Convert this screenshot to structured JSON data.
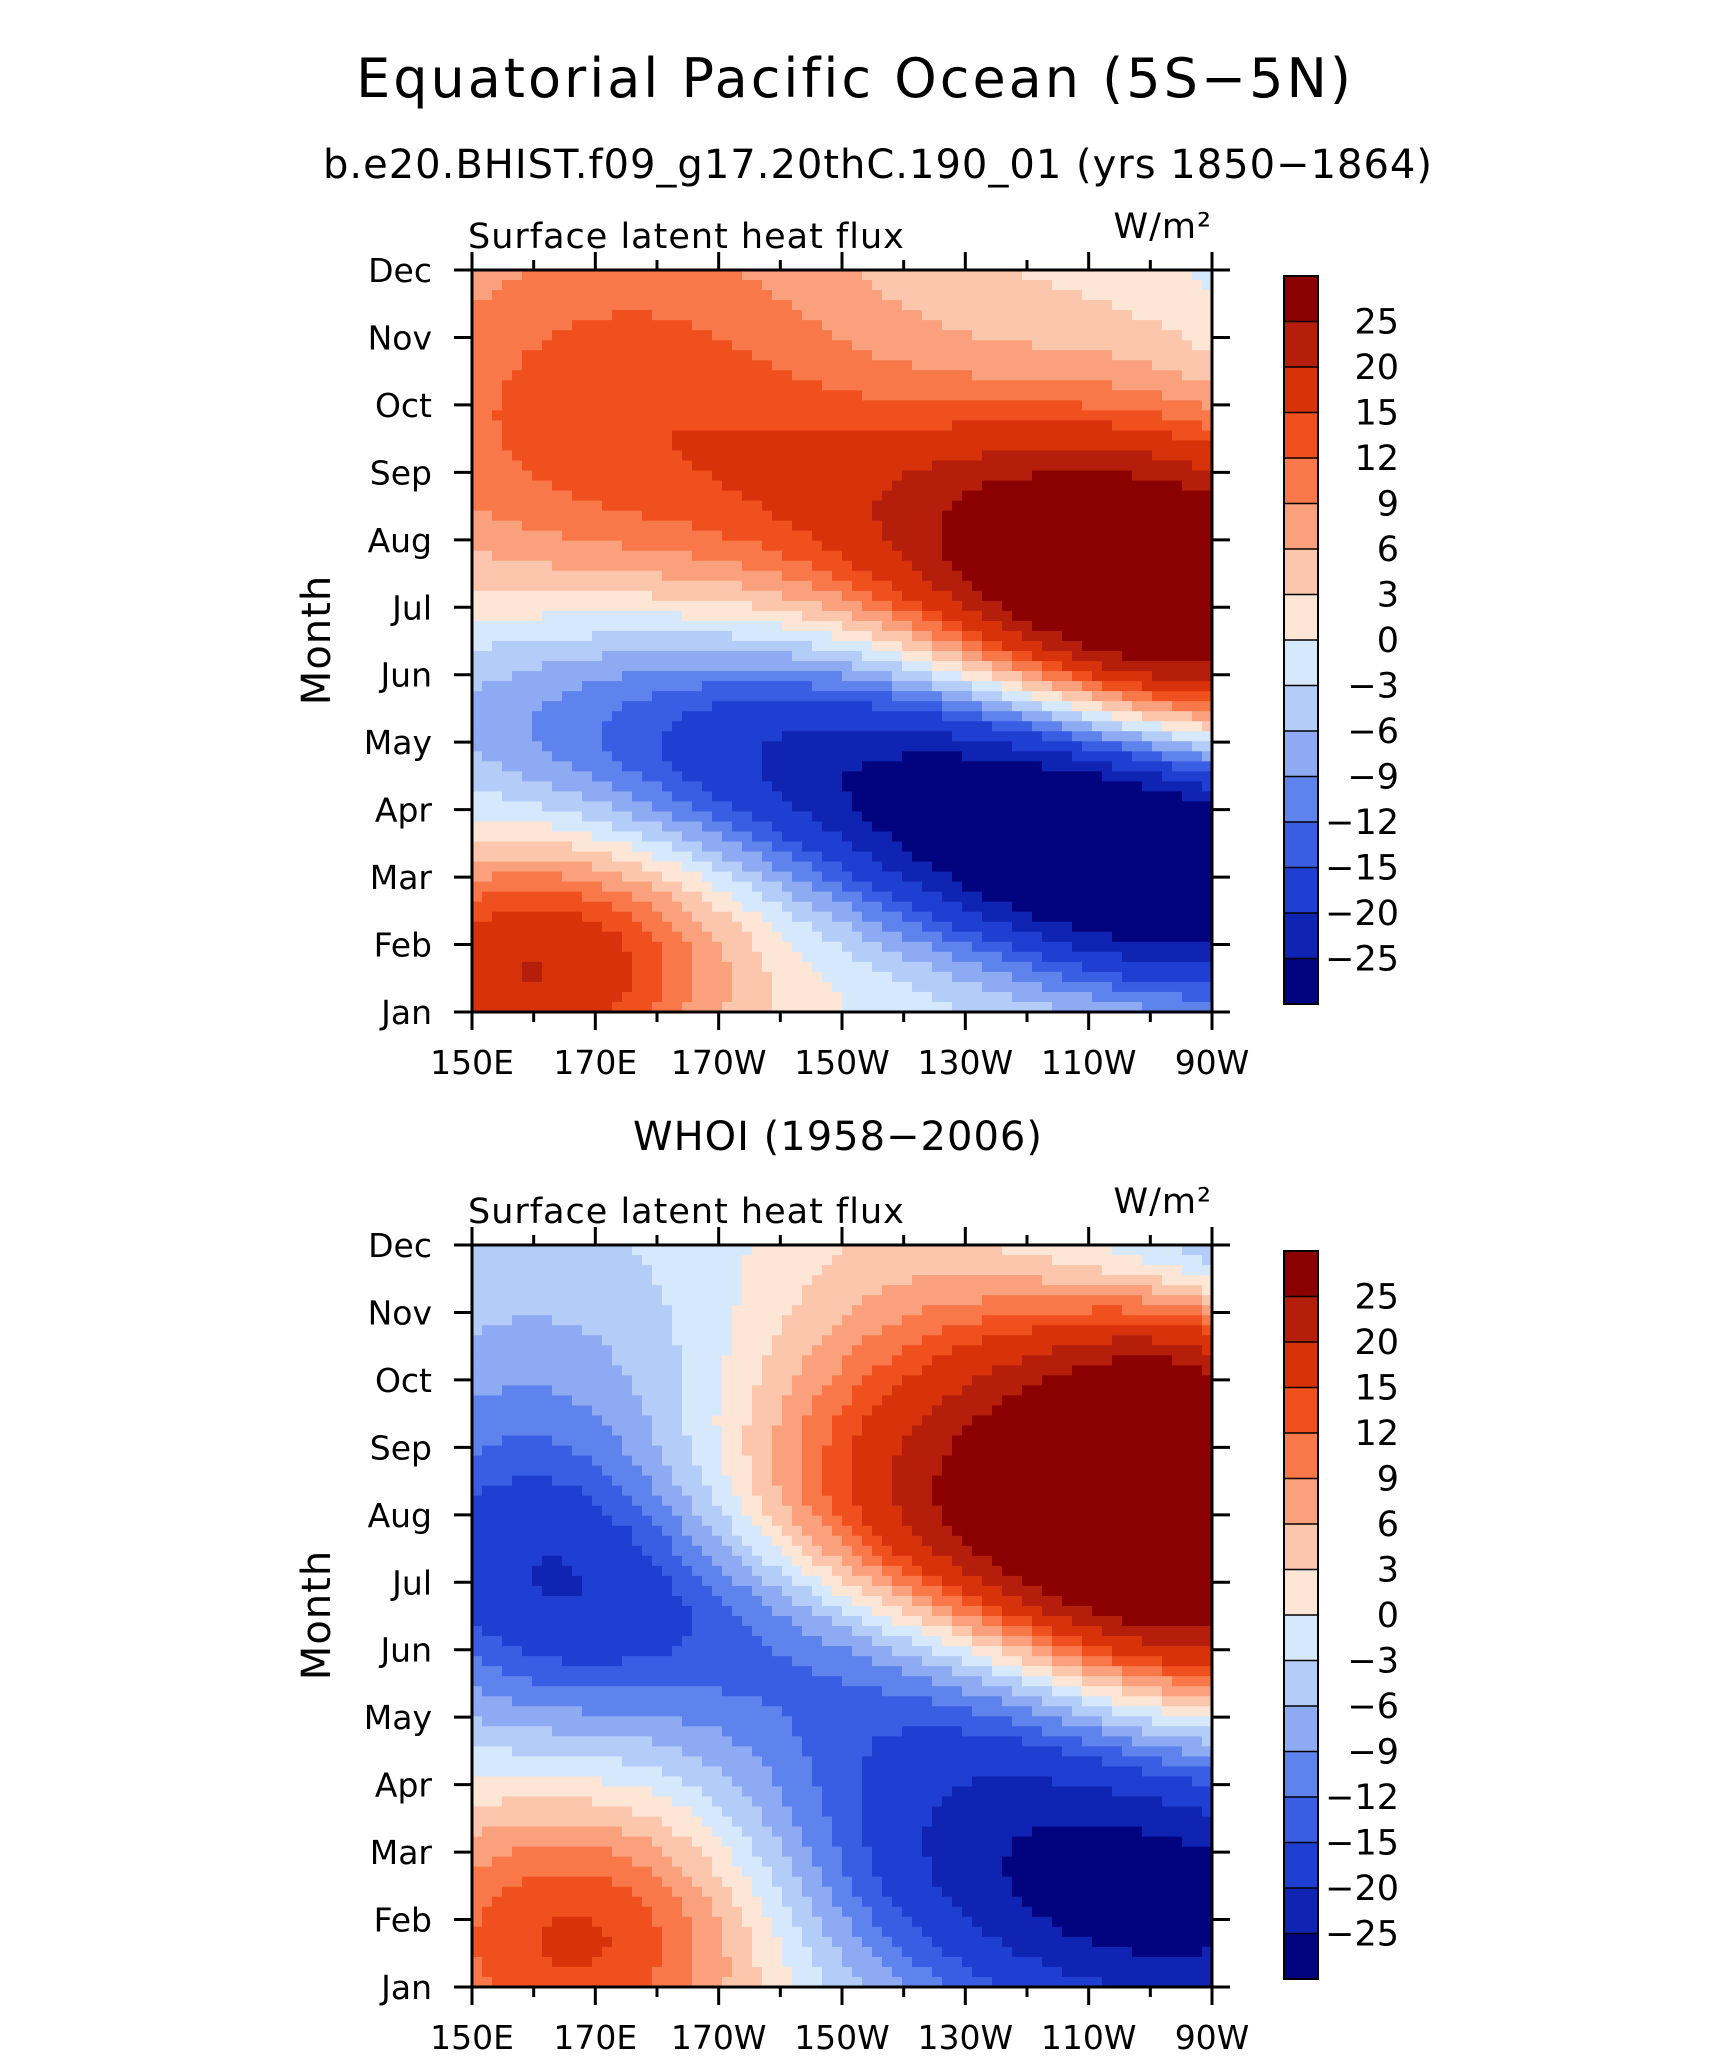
{
  "page": {
    "title": "Equatorial Pacific Ocean (5S−5N)"
  },
  "chart_data": [
    {
      "type": "heatmap",
      "heading": "b.e20.BHIST.f09_g17.20thC.190_01 (yrs 1850−1864)",
      "left_label": "Surface latent heat flux",
      "units": "W/m²",
      "ylabel": "Month",
      "xlabel": "",
      "x_ticks": [
        "150E",
        "170E",
        "170W",
        "150W",
        "130W",
        "110W",
        "90W"
      ],
      "y_ticks": [
        "Jan",
        "Feb",
        "Mar",
        "Apr",
        "May",
        "Jun",
        "Jul",
        "Aug",
        "Sep",
        "Oct",
        "Nov",
        "Dec"
      ],
      "colorbar": {
        "levels": [
          "25",
          "20",
          "15",
          "12",
          "9",
          "6",
          "3",
          "0",
          "−3",
          "−6",
          "−9",
          "−12",
          "−15",
          "−20",
          "−25"
        ],
        "colors": [
          "#8b0000",
          "#b51e0b",
          "#d8320a",
          "#f0501e",
          "#f8784a",
          "#faa07c",
          "#fcc6ac",
          "#fde6d6",
          "#d6e8fb",
          "#b4cdf8",
          "#8daaf3",
          "#5f83ec",
          "#3a5ee3",
          "#1f3ed2",
          "#1024b4",
          "#02047f"
        ]
      },
      "grid": {
        "lon_nodes": 13,
        "month_nodes": 12,
        "range": [
          -28,
          28
        ]
      },
      "features": [
        {
          "lon": 11,
          "month": 6.1,
          "amp": 28,
          "sx": 2.5,
          "sy": 1.3,
          "tilt": -0.55
        },
        {
          "lon": 8,
          "month": 7.3,
          "amp": 14,
          "sx": 5,
          "sy": 1.4,
          "tilt": -0.5
        },
        {
          "lon": 0.5,
          "month": 8,
          "amp": 6,
          "sx": 3,
          "sy": 3,
          "tilt": 0
        },
        {
          "lon": 13,
          "month": 8.4,
          "amp": 8,
          "sx": 3,
          "sy": 2,
          "tilt": 0
        },
        {
          "lon": 11,
          "month": 2,
          "amp": -30,
          "sx": 3,
          "sy": 1.2,
          "tilt": -0.55
        },
        {
          "lon": 6,
          "month": 3.7,
          "amp": -20,
          "sx": 5,
          "sy": 1.3,
          "tilt": -0.5
        },
        {
          "lon": 20,
          "month": 1.5,
          "amp": -16,
          "sx": 3,
          "sy": 1.6,
          "tilt": 0
        },
        {
          "lon": 1,
          "month": 0.6,
          "amp": 20,
          "sx": 2.2,
          "sy": 1.3,
          "tilt": 0.3
        },
        {
          "lon": 15.5,
          "month": 10.4,
          "amp": -14,
          "sx": 2.4,
          "sy": 1.6,
          "tilt": 0.2
        },
        {
          "lon": 3.5,
          "month": 10.5,
          "amp": 7,
          "sx": 3,
          "sy": 1.5,
          "tilt": 0
        }
      ]
    },
    {
      "type": "heatmap",
      "heading": "WHOI (1958−2006)",
      "left_label": "Surface latent heat flux",
      "units": "W/m²",
      "ylabel": "Month",
      "xlabel": "",
      "x_ticks": [
        "150E",
        "170E",
        "170W",
        "150W",
        "130W",
        "110W",
        "90W"
      ],
      "y_ticks": [
        "Jan",
        "Feb",
        "Mar",
        "Apr",
        "May",
        "Jun",
        "Jul",
        "Aug",
        "Sep",
        "Oct",
        "Nov",
        "Dec"
      ],
      "colorbar": {
        "levels": [
          "25",
          "20",
          "15",
          "12",
          "9",
          "6",
          "3",
          "0",
          "−3",
          "−6",
          "−9",
          "−12",
          "−15",
          "−20",
          "−25"
        ],
        "colors": [
          "#8b0000",
          "#b51e0b",
          "#d8320a",
          "#f0501e",
          "#f8784a",
          "#faa07c",
          "#fcc6ac",
          "#fde6d6",
          "#d6e8fb",
          "#b4cdf8",
          "#8daaf3",
          "#5f83ec",
          "#3a5ee3",
          "#1f3ed2",
          "#1024b4",
          "#02047f"
        ]
      },
      "grid": {
        "lon_nodes": 13,
        "month_nodes": 12,
        "range": [
          -28,
          28
        ]
      },
      "features": [
        {
          "lon": 8.5,
          "month": 7.8,
          "amp": 18,
          "sx": 2.6,
          "sy": 2.4,
          "tilt": 0
        },
        {
          "lon": 11.6,
          "month": 8.1,
          "amp": 26,
          "sx": 1.8,
          "sy": 2.6,
          "tilt": 0
        },
        {
          "lon": 10,
          "month": 6.2,
          "amp": 14,
          "sx": 4,
          "sy": 1.4,
          "tilt": -0.4
        },
        {
          "lon": 2,
          "month": 0.9,
          "amp": 18,
          "sx": 2.4,
          "sy": 1.6,
          "tilt": 0.2
        },
        {
          "lon": 9.5,
          "month": 2,
          "amp": -24,
          "sx": 4,
          "sy": 1.8,
          "tilt": -0.3
        },
        {
          "lon": 12,
          "month": 0.8,
          "amp": -10,
          "sx": 2.4,
          "sy": 1.4,
          "tilt": 0
        },
        {
          "lon": 1,
          "month": 6.2,
          "amp": -14,
          "sx": 2,
          "sy": 1.8,
          "tilt": 0
        },
        {
          "lon": 6,
          "month": 5.2,
          "amp": -14,
          "sx": 3.6,
          "sy": 1.2,
          "tilt": -0.6
        },
        {
          "lon": 12,
          "month": 10.9,
          "amp": -22,
          "sx": 2.4,
          "sy": 1.1,
          "tilt": 0
        },
        {
          "lon": 1.5,
          "month": 9.2,
          "amp": -5,
          "sx": 3,
          "sy": 2,
          "tilt": 0
        }
      ]
    }
  ]
}
